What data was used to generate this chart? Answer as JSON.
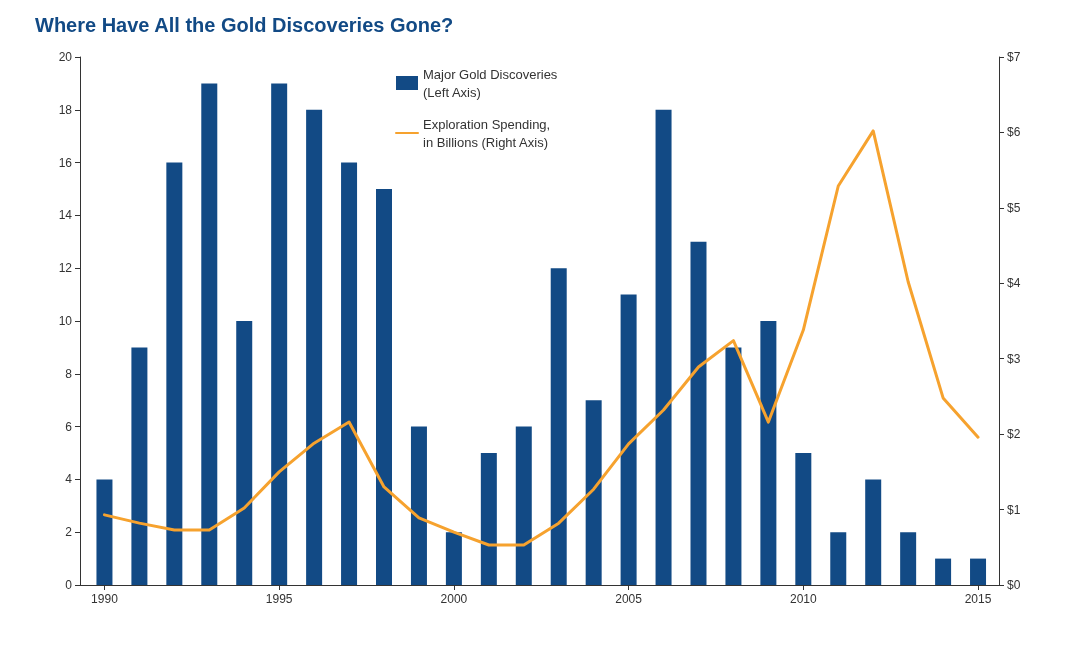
{
  "chart_data": {
    "type": "bar",
    "title": "Where Have All the Gold Discoveries Gone?",
    "x": [
      1990,
      1991,
      1992,
      1993,
      1994,
      1995,
      1996,
      1997,
      1998,
      1999,
      2000,
      2001,
      2002,
      2003,
      2004,
      2005,
      2006,
      2007,
      2008,
      2009,
      2010,
      2011,
      2012,
      2013,
      2014,
      2015
    ],
    "series": [
      {
        "name": "Major Gold Discoveries\n(Left Axis)",
        "color": "#124a85",
        "values": [
          4,
          9,
          16,
          19,
          10,
          19,
          18,
          16,
          15,
          6,
          2,
          5,
          6,
          12,
          7,
          11,
          18,
          13,
          9,
          10,
          5,
          2,
          4,
          2,
          1,
          1
        ]
      },
      {
        "type": "line",
        "axis": "y2",
        "name": "Exploration Spending,\nin Billions (Right Axis)",
        "color": "#f6a22e",
        "values": [
          0.93,
          0.82,
          0.73,
          0.73,
          1.02,
          1.5,
          1.88,
          2.16,
          1.3,
          0.89,
          0.7,
          0.53,
          0.53,
          0.82,
          1.27,
          1.87,
          2.32,
          2.89,
          3.24,
          2.16,
          3.38,
          5.29,
          6.02,
          4.02,
          2.48,
          1.96
        ]
      }
    ],
    "xlim": [
      1989.3,
      2015.6
    ],
    "xticks": [
      1990,
      1995,
      2000,
      2005,
      2010,
      2015
    ],
    "ylim": [
      0,
      20
    ],
    "yticks": [
      0,
      2,
      4,
      6,
      8,
      10,
      12,
      14,
      16,
      18,
      20
    ],
    "y2lim": [
      0,
      7
    ],
    "y2ticks": [
      {
        "value": 0,
        "label": "$0"
      },
      {
        "value": 1,
        "label": "$1"
      },
      {
        "value": 2,
        "label": "$2"
      },
      {
        "value": 3,
        "label": "$3"
      },
      {
        "value": 4,
        "label": "$4"
      },
      {
        "value": 5,
        "label": "$5"
      },
      {
        "value": 6,
        "label": "$6"
      },
      {
        "value": 7,
        "label": "$7"
      }
    ],
    "grid": false,
    "legend": "top",
    "marker": "none",
    "line_style": "solid"
  }
}
